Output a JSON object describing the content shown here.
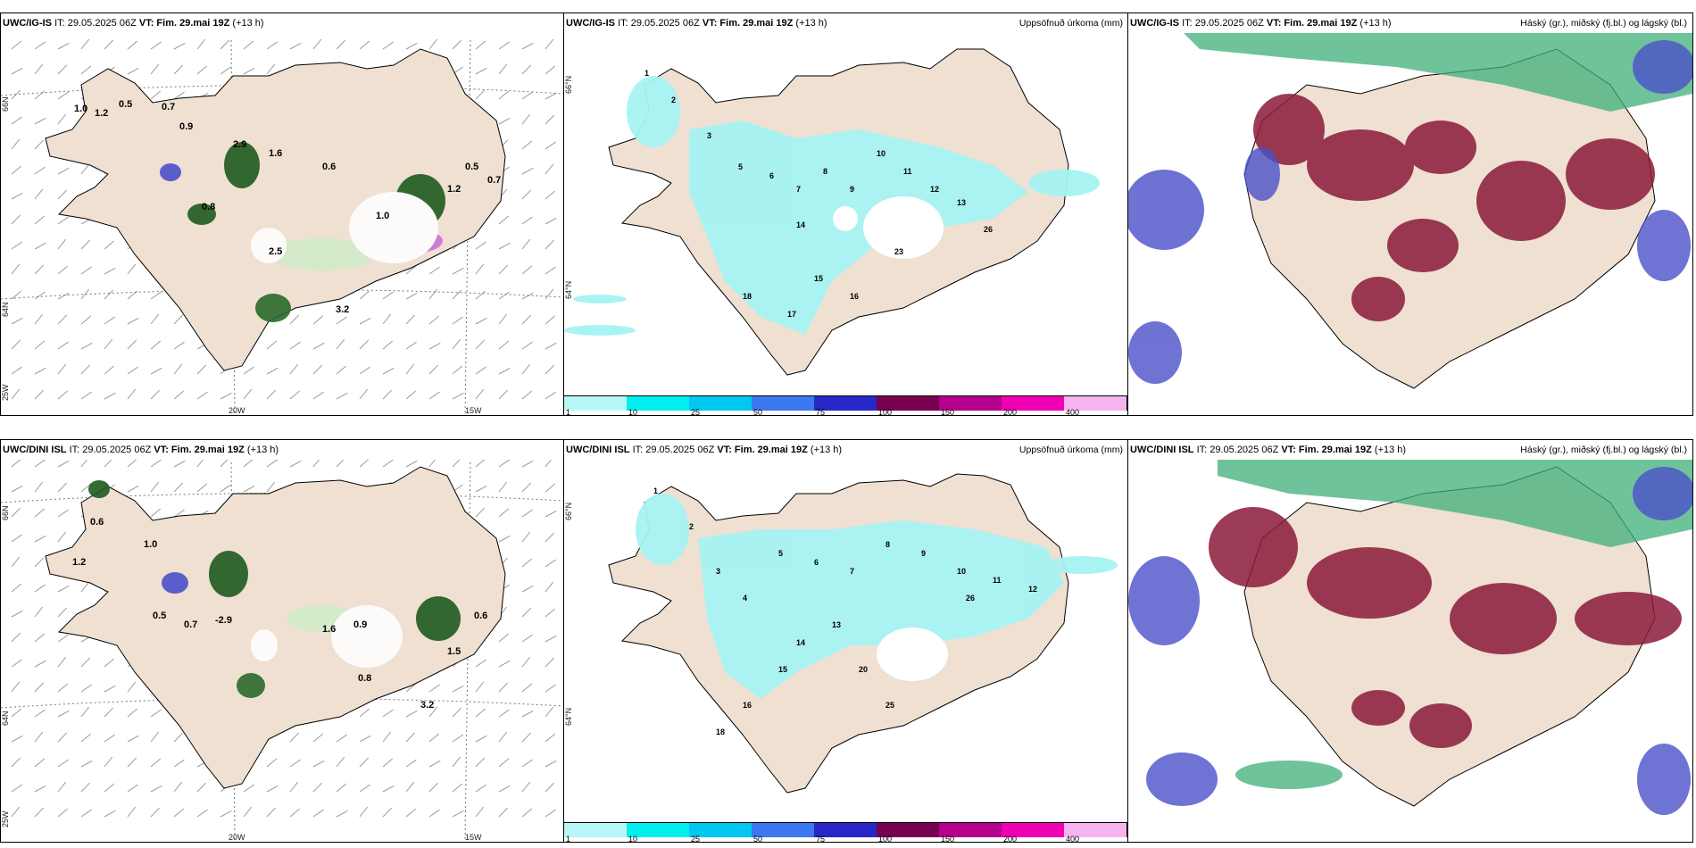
{
  "rows": [
    {
      "model": "UWC/IG-IS",
      "it": "IT: 29.05.2025 06Z",
      "vt_label": "VT:",
      "vt_value": "Fim. 29.mai 19Z",
      "lead": "(+13 h)",
      "precip_title": "Uppsöfnuð úrkoma (mm)",
      "cloud_title": "Háský (gr.), miðský (fj.bl.) og lágský (bl.)",
      "lon_labels": [
        "20W",
        "15W"
      ],
      "lat_labels": [
        "66N",
        "64N",
        "25W"
      ],
      "precip_lat_labels": [
        "66°N",
        "64°N"
      ]
    },
    {
      "model": "UWC/DINI ISL",
      "it": "IT: 29.05.2025 06Z",
      "vt_label": "VT:",
      "vt_value": "Fim. 29.mai 19Z",
      "lead": "(+13 h)",
      "precip_title": "Uppsöfnuð úrkoma (mm)",
      "cloud_title": "Háský (gr.), miðský (fj.bl.) og lágský (bl.)",
      "lon_labels": [
        "20W",
        "15W"
      ],
      "lat_labels": [
        "66N",
        "64N",
        "25W"
      ],
      "precip_lat_labels": [
        "66°N",
        "64°N"
      ]
    }
  ],
  "colorbar": {
    "labels": [
      "1",
      "10",
      "25",
      "50",
      "75",
      "100",
      "150",
      "200",
      "400"
    ],
    "colors": [
      "#b8f7f7",
      "#00f0f0",
      "#00c8f0",
      "#3c78f0",
      "#2828c8",
      "#780050",
      "#b4008c",
      "#f000b4",
      "#f5b4f0"
    ]
  },
  "colors": {
    "land": "#efe0d2",
    "precip_light": "#a6f3f3",
    "high_cloud": "#3faf7a",
    "mid_cloud": "#8b1a3a",
    "low_cloud": "#4b50c8"
  },
  "precip_values_top": [
    "1",
    "2",
    "3",
    "5",
    "6",
    "7",
    "8",
    "9",
    "10",
    "11",
    "12",
    "13",
    "14",
    "15",
    "16",
    "17",
    "18",
    "26",
    "23"
  ],
  "precip_values_bottom": [
    "1",
    "2",
    "3",
    "4",
    "5",
    "6",
    "7",
    "8",
    "9",
    "10",
    "11",
    "12",
    "13",
    "14",
    "15",
    "16",
    "18",
    "20",
    "25",
    "26"
  ],
  "wind_values_top": [
    "1.0",
    "1.2",
    "0.5",
    "0.7",
    "0.9",
    "2.9",
    "1.6",
    "0.8",
    "2.5",
    "3.2",
    "0.6"
  ],
  "wind_values_bottom": [
    "0.6",
    "1.2",
    "1.0",
    "0.5",
    "0.7",
    "-2.9",
    "1.6",
    "0.9",
    "0.8",
    "3.2",
    "1.5"
  ]
}
